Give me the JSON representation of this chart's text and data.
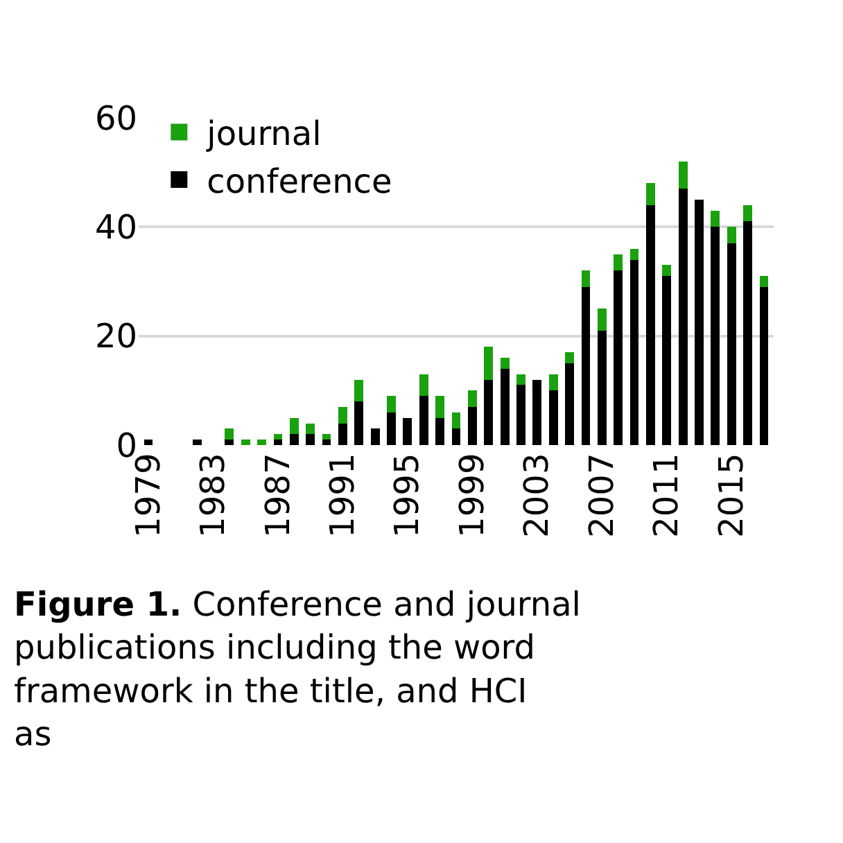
{
  "chart_data": {
    "type": "bar",
    "stacked": true,
    "categories": [
      "1979",
      null,
      null,
      null,
      "1983",
      null,
      null,
      null,
      "1987",
      null,
      null,
      null,
      "1991",
      null,
      null,
      null,
      "1995",
      null,
      null,
      null,
      "1999",
      null,
      null,
      null,
      "2003",
      null,
      null,
      null,
      "2007",
      null,
      null,
      null,
      "2011",
      null,
      null,
      null,
      "2015",
      null,
      null
    ],
    "series": [
      {
        "name": "conference",
        "color": "#000000",
        "values": [
          1,
          0,
          0,
          1,
          0,
          1,
          0,
          0,
          1,
          2,
          2,
          1,
          4,
          8,
          3,
          6,
          5,
          9,
          5,
          3,
          7,
          12,
          14,
          11,
          12,
          10,
          15,
          29,
          21,
          32,
          34,
          44,
          31,
          47,
          45,
          40,
          37,
          41,
          29
        ]
      },
      {
        "name": "journal",
        "color": "#1aa10e",
        "values": [
          0,
          0,
          0,
          0,
          0,
          2,
          1,
          1,
          1,
          3,
          2,
          1,
          3,
          4,
          0,
          3,
          0,
          4,
          4,
          3,
          3,
          6,
          2,
          2,
          0,
          3,
          2,
          3,
          4,
          3,
          2,
          4,
          2,
          5,
          0,
          3,
          3,
          3,
          2
        ]
      }
    ],
    "ylim": [
      0,
      60
    ],
    "yticks": [
      0,
      20,
      40,
      60
    ],
    "grid": "y",
    "legend": "top left",
    "annotations": [
      "Figure 1.",
      "Conference and journal publications including the word framework in the title, and HCI as"
    ]
  }
}
